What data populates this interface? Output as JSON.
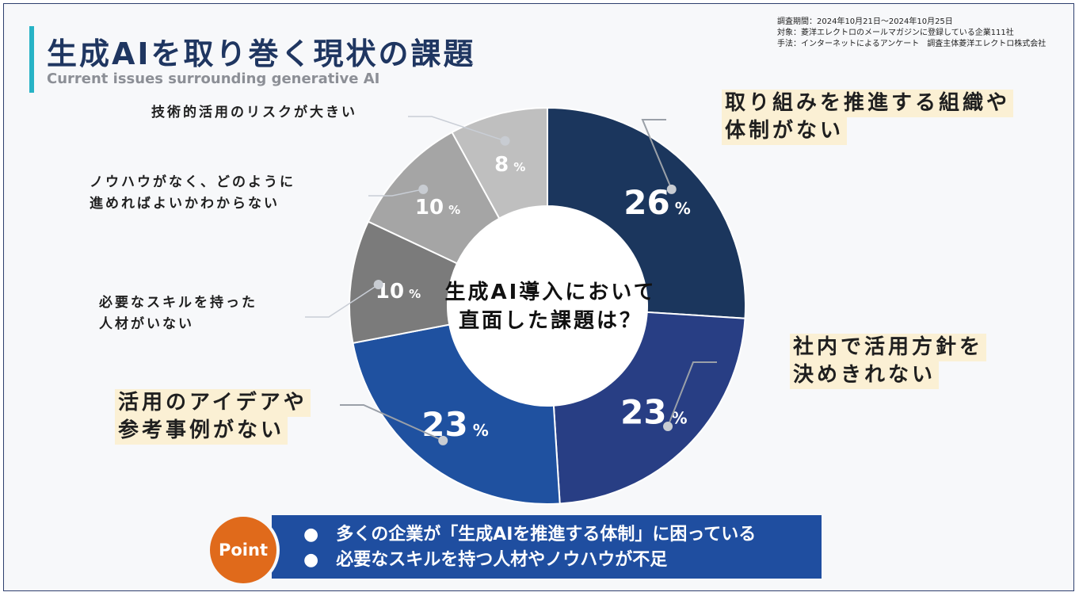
{
  "header": {
    "title": "生成AIを取り巻く現状の課題",
    "subtitle": "Current issues surrounding generative AI"
  },
  "survey": {
    "period": "調査期間：2024年10月21日～2024年10月25日",
    "target": "対象：菱洋エレクトロのメールマガジンに登録している企業111社",
    "method": "手法：インターネットによるアンケート　調査主体菱洋エレクトロ株式会社"
  },
  "chart_data": {
    "type": "pie",
    "center_text": [
      "生成AI導入において",
      "直面した課題は？"
    ],
    "unit": "%",
    "slices": [
      {
        "label_lines": [
          "取り組みを推進する組織や",
          "体制がない"
        ],
        "value": 26,
        "color": "#1b365d"
      },
      {
        "label_lines": [
          "社内で活用方針を",
          "決めきれない"
        ],
        "value": 23,
        "color": "#283e84"
      },
      {
        "label_lines": [
          "活用のアイデアや",
          "参考事例がない"
        ],
        "value": 23,
        "color": "#1f51a0"
      },
      {
        "label_lines": [
          "必要なスキルを持った",
          "人材がいない"
        ],
        "value": 10,
        "color": "#7b7b7b"
      },
      {
        "label_lines": [
          "ノウハウがなく、どのように",
          "進めればよいかわからない"
        ],
        "value": 10,
        "color": "#a5a5a5"
      },
      {
        "label_lines": [
          "技術的活用のリスクが大きい"
        ],
        "value": 8,
        "color": "#bfbfbf"
      }
    ]
  },
  "point": {
    "badge": "Point",
    "items": [
      "●　多くの企業が「生成AIを推進する体制」に困っている",
      "●　必要なスキルを持つ人材やノウハウが不足"
    ]
  }
}
